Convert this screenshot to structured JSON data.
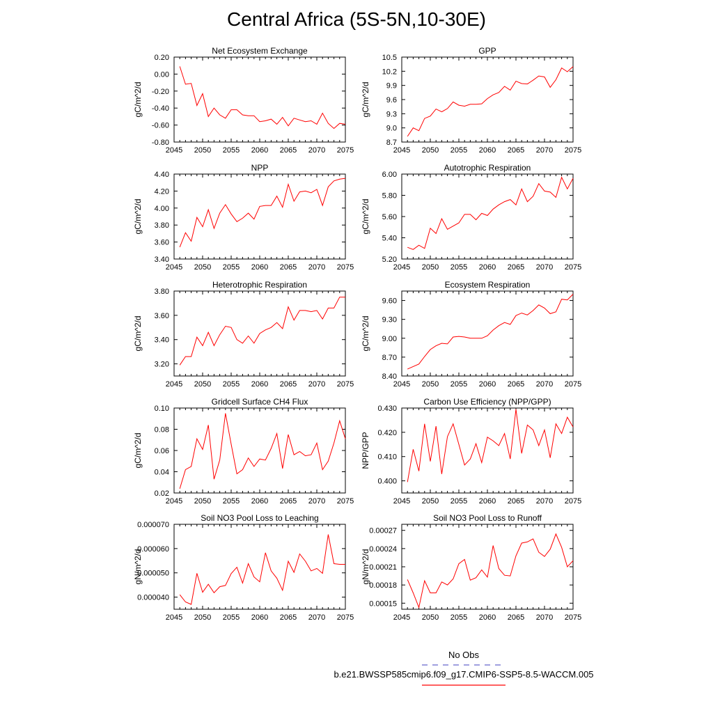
{
  "title": "Central Africa (5S-5N,10-30E)",
  "legend": {
    "obs_label": "No Obs",
    "obs_color": "#6666cc",
    "case_label": "b.e21.BWSSP585cmip6.f09_g17.CMIP6-SSP5-8.5-WACCM.005",
    "case_color": "#ff0000"
  },
  "chart_data": [
    {
      "type": "line",
      "title": "Net Ecosystem Exchange",
      "ylabel": "gC/m^2/d",
      "xlim": [
        2045,
        2075
      ],
      "ylim": [
        -0.8,
        0.2
      ],
      "xticks": [
        "2045",
        "2050",
        "2055",
        "2060",
        "2065",
        "2070",
        "2075"
      ],
      "yticks": [
        "-0.80",
        "-0.60",
        "-0.40",
        "-0.20",
        "0.00",
        "0.20"
      ],
      "x": [
        2046,
        2047,
        2048,
        2049,
        2050,
        2051,
        2052,
        2053,
        2054,
        2055,
        2056,
        2057,
        2058,
        2059,
        2060,
        2061,
        2062,
        2063,
        2064,
        2065,
        2066,
        2067,
        2068,
        2069,
        2070,
        2071,
        2072,
        2073,
        2074,
        2075
      ],
      "values": [
        0.09,
        -0.12,
        -0.11,
        -0.37,
        -0.23,
        -0.5,
        -0.4,
        -0.48,
        -0.52,
        -0.42,
        -0.42,
        -0.48,
        -0.49,
        -0.49,
        -0.56,
        -0.55,
        -0.53,
        -0.59,
        -0.51,
        -0.61,
        -0.52,
        -0.54,
        -0.56,
        -0.55,
        -0.59,
        -0.46,
        -0.58,
        -0.64,
        -0.58,
        -0.59
      ]
    },
    {
      "type": "line",
      "title": "GPP",
      "ylabel": "gC/m^2/d",
      "xlim": [
        2045,
        2075
      ],
      "ylim": [
        8.7,
        10.5
      ],
      "xticks": [
        "2045",
        "2050",
        "2055",
        "2060",
        "2065",
        "2070",
        "2075"
      ],
      "yticks": [
        "8.7",
        "9.0",
        "9.3",
        "9.6",
        "9.9",
        "10.2",
        "10.5"
      ],
      "x": [
        2046,
        2047,
        2048,
        2049,
        2050,
        2051,
        2052,
        2053,
        2054,
        2055,
        2056,
        2057,
        2058,
        2059,
        2060,
        2061,
        2062,
        2063,
        2064,
        2065,
        2066,
        2067,
        2068,
        2069,
        2070,
        2071,
        2072,
        2073,
        2074,
        2075
      ],
      "values": [
        8.82,
        9.0,
        8.94,
        9.2,
        9.25,
        9.4,
        9.34,
        9.41,
        9.55,
        9.48,
        9.46,
        9.5,
        9.5,
        9.51,
        9.62,
        9.7,
        9.75,
        9.88,
        9.8,
        9.99,
        9.94,
        9.93,
        10.01,
        10.1,
        10.08,
        9.86,
        10.02,
        10.27,
        10.19,
        10.3
      ]
    },
    {
      "type": "line",
      "title": "NPP",
      "ylabel": "gC/m^2/d",
      "xlim": [
        2045,
        2075
      ],
      "ylim": [
        3.4,
        4.4
      ],
      "xticks": [
        "2045",
        "2050",
        "2055",
        "2060",
        "2065",
        "2070",
        "2075"
      ],
      "yticks": [
        "3.40",
        "3.60",
        "3.80",
        "4.00",
        "4.20",
        "4.40"
      ],
      "x": [
        2046,
        2047,
        2048,
        2049,
        2050,
        2051,
        2052,
        2053,
        2054,
        2055,
        2056,
        2057,
        2058,
        2059,
        2060,
        2061,
        2062,
        2063,
        2064,
        2065,
        2066,
        2067,
        2068,
        2069,
        2070,
        2071,
        2072,
        2073,
        2074,
        2075
      ],
      "values": [
        3.54,
        3.71,
        3.61,
        3.89,
        3.78,
        3.98,
        3.76,
        3.94,
        4.04,
        3.93,
        3.84,
        3.88,
        3.94,
        3.87,
        4.02,
        4.03,
        4.03,
        4.14,
        4.01,
        4.28,
        4.08,
        4.19,
        4.2,
        4.18,
        4.22,
        4.03,
        4.25,
        4.32,
        4.34,
        4.35
      ]
    },
    {
      "type": "line",
      "title": "Autotrophic Respiration",
      "ylabel": "gC/m^2/d",
      "xlim": [
        2045,
        2075
      ],
      "ylim": [
        5.2,
        6.0
      ],
      "xticks": [
        "2045",
        "2050",
        "2055",
        "2060",
        "2065",
        "2070",
        "2075"
      ],
      "yticks": [
        "5.20",
        "5.40",
        "5.60",
        "5.80",
        "6.00"
      ],
      "x": [
        2046,
        2047,
        2048,
        2049,
        2050,
        2051,
        2052,
        2053,
        2054,
        2055,
        2056,
        2057,
        2058,
        2059,
        2060,
        2061,
        2062,
        2063,
        2064,
        2065,
        2066,
        2067,
        2068,
        2069,
        2070,
        2071,
        2072,
        2073,
        2074,
        2075
      ],
      "values": [
        5.31,
        5.29,
        5.33,
        5.3,
        5.49,
        5.44,
        5.58,
        5.48,
        5.51,
        5.54,
        5.62,
        5.62,
        5.57,
        5.63,
        5.61,
        5.67,
        5.71,
        5.74,
        5.76,
        5.71,
        5.86,
        5.74,
        5.79,
        5.91,
        5.84,
        5.83,
        5.78,
        5.97,
        5.86,
        5.96
      ]
    },
    {
      "type": "line",
      "title": "Heterotrophic Respiration",
      "ylabel": "gC/m^2/d",
      "xlim": [
        2045,
        2075
      ],
      "ylim": [
        3.1,
        3.8
      ],
      "xticks": [
        "2045",
        "2050",
        "2055",
        "2060",
        "2065",
        "2070",
        "2075"
      ],
      "yticks": [
        "3.20",
        "3.40",
        "3.60",
        "3.80"
      ],
      "x": [
        2046,
        2047,
        2048,
        2049,
        2050,
        2051,
        2052,
        2053,
        2054,
        2055,
        2056,
        2057,
        2058,
        2059,
        2060,
        2061,
        2062,
        2063,
        2064,
        2065,
        2066,
        2067,
        2068,
        2069,
        2070,
        2071,
        2072,
        2073,
        2074,
        2075
      ],
      "values": [
        3.19,
        3.26,
        3.26,
        3.42,
        3.35,
        3.46,
        3.35,
        3.44,
        3.51,
        3.5,
        3.4,
        3.37,
        3.43,
        3.37,
        3.45,
        3.48,
        3.5,
        3.54,
        3.49,
        3.67,
        3.56,
        3.64,
        3.64,
        3.63,
        3.64,
        3.57,
        3.66,
        3.66,
        3.75,
        3.75
      ]
    },
    {
      "type": "line",
      "title": "Ecosystem Respiration",
      "ylabel": "gC/m^2/d",
      "xlim": [
        2045,
        2075
      ],
      "ylim": [
        8.4,
        9.75
      ],
      "xticks": [
        "2045",
        "2050",
        "2055",
        "2060",
        "2065",
        "2070",
        "2075"
      ],
      "yticks": [
        "8.40",
        "8.70",
        "9.00",
        "9.30",
        "9.60"
      ],
      "x": [
        2046,
        2047,
        2048,
        2049,
        2050,
        2051,
        2052,
        2053,
        2054,
        2055,
        2056,
        2057,
        2058,
        2059,
        2060,
        2061,
        2062,
        2063,
        2064,
        2065,
        2066,
        2067,
        2068,
        2069,
        2070,
        2071,
        2072,
        2073,
        2074,
        2075
      ],
      "values": [
        8.51,
        8.55,
        8.59,
        8.71,
        8.82,
        8.88,
        8.92,
        8.91,
        9.02,
        9.03,
        9.02,
        9.0,
        9.0,
        9.0,
        9.04,
        9.13,
        9.2,
        9.25,
        9.22,
        9.36,
        9.4,
        9.37,
        9.44,
        9.53,
        9.48,
        9.39,
        9.42,
        9.62,
        9.61,
        9.7
      ]
    },
    {
      "type": "line",
      "title": "Gridcell Surface CH4 Flux",
      "ylabel": "gC/m^2/d",
      "xlim": [
        2045,
        2075
      ],
      "ylim": [
        0.02,
        0.1
      ],
      "xticks": [
        "2045",
        "2050",
        "2055",
        "2060",
        "2065",
        "2070",
        "2075"
      ],
      "yticks": [
        "0.02",
        "0.04",
        "0.06",
        "0.08",
        "0.10"
      ],
      "x": [
        2046,
        2047,
        2048,
        2049,
        2050,
        2051,
        2052,
        2053,
        2054,
        2055,
        2056,
        2057,
        2058,
        2059,
        2060,
        2061,
        2062,
        2063,
        2064,
        2065,
        2066,
        2067,
        2068,
        2069,
        2070,
        2071,
        2072,
        2073,
        2074,
        2075
      ],
      "values": [
        0.024,
        0.042,
        0.045,
        0.071,
        0.061,
        0.084,
        0.033,
        0.051,
        0.095,
        0.066,
        0.038,
        0.042,
        0.053,
        0.045,
        0.052,
        0.051,
        0.062,
        0.076,
        0.043,
        0.075,
        0.056,
        0.059,
        0.055,
        0.056,
        0.067,
        0.042,
        0.05,
        0.067,
        0.088,
        0.071
      ]
    },
    {
      "type": "line",
      "title": "Carbon Use Efficiency (NPP/GPP)",
      "ylabel": "NPP/GPP",
      "xlim": [
        2045,
        2075
      ],
      "ylim": [
        0.395,
        0.43
      ],
      "xticks": [
        "2045",
        "2050",
        "2055",
        "2060",
        "2065",
        "2070",
        "2075"
      ],
      "yticks": [
        "0.400",
        "0.410",
        "0.420",
        "0.430"
      ],
      "x": [
        2046,
        2047,
        2048,
        2049,
        2050,
        2051,
        2052,
        2053,
        2054,
        2055,
        2056,
        2057,
        2058,
        2059,
        2060,
        2061,
        2062,
        2063,
        2064,
        2065,
        2066,
        2067,
        2068,
        2069,
        2070,
        2071,
        2072,
        2073,
        2074,
        2075
      ],
      "values": [
        0.3995,
        0.413,
        0.404,
        0.4235,
        0.408,
        0.4225,
        0.4028,
        0.4182,
        0.4235,
        0.415,
        0.4065,
        0.409,
        0.4153,
        0.4075,
        0.418,
        0.4165,
        0.4145,
        0.4195,
        0.409,
        0.4295,
        0.4113,
        0.423,
        0.421,
        0.4145,
        0.421,
        0.4095,
        0.4235,
        0.4195,
        0.4262,
        0.4222
      ]
    },
    {
      "type": "line",
      "title": "Soil NO3 Pool Loss to Leaching",
      "ylabel": "gN/m^2/d",
      "xlim": [
        2045,
        2075
      ],
      "ylim": [
        3.5e-05,
        7e-05
      ],
      "xticks": [
        "2045",
        "2050",
        "2055",
        "2060",
        "2065",
        "2070",
        "2075"
      ],
      "yticks": [
        "0.000040",
        "0.000050",
        "0.000060",
        "0.000070"
      ],
      "x": [
        2046,
        2047,
        2048,
        2049,
        2050,
        2051,
        2052,
        2053,
        2054,
        2055,
        2056,
        2057,
        2058,
        2059,
        2060,
        2061,
        2062,
        2063,
        2064,
        2065,
        2066,
        2067,
        2068,
        2069,
        2070,
        2071,
        2072,
        2073,
        2074,
        2075
      ],
      "values": [
        4.1e-05,
        3.8e-05,
        3.7e-05,
        4.98e-05,
        4.2e-05,
        4.53e-05,
        4.18e-05,
        4.43e-05,
        4.48e-05,
        4.97e-05,
        5.23e-05,
        4.58e-05,
        5.38e-05,
        4.83e-05,
        4.63e-05,
        5.83e-05,
        5.08e-05,
        4.78e-05,
        4.28e-05,
        5.48e-05,
        5.02e-05,
        5.78e-05,
        5.48e-05,
        5.08e-05,
        5.18e-05,
        4.98e-05,
        6.58e-05,
        5.38e-05,
        5.35e-05,
        5.35e-05
      ]
    },
    {
      "type": "line",
      "title": "Soil NO3 Pool Loss to Runoff",
      "ylabel": "gN/m^2/d",
      "xlim": [
        2045,
        2075
      ],
      "ylim": [
        0.00014,
        0.00028
      ],
      "xticks": [
        "2045",
        "2050",
        "2055",
        "2060",
        "2065",
        "2070",
        "2075"
      ],
      "yticks": [
        "0.00015",
        "0.00018",
        "0.00021",
        "0.00024",
        "0.00027"
      ],
      "x": [
        2046,
        2047,
        2048,
        2049,
        2050,
        2051,
        2052,
        2053,
        2054,
        2055,
        2056,
        2057,
        2058,
        2059,
        2060,
        2061,
        2062,
        2063,
        2064,
        2065,
        2066,
        2067,
        2068,
        2069,
        2070,
        2071,
        2072,
        2073,
        2074,
        2075
      ],
      "values": [
        0.000189,
        0.000167,
        0.000143,
        0.000187,
        0.000167,
        0.000167,
        0.000185,
        0.00018,
        0.00019,
        0.000215,
        0.000222,
        0.000188,
        0.000192,
        0.000205,
        0.000193,
        0.000245,
        0.000207,
        0.000196,
        0.000195,
        0.000228,
        0.000249,
        0.000251,
        0.000256,
        0.000234,
        0.000227,
        0.000239,
        0.000264,
        0.000242,
        0.00021,
        0.00022
      ]
    }
  ]
}
